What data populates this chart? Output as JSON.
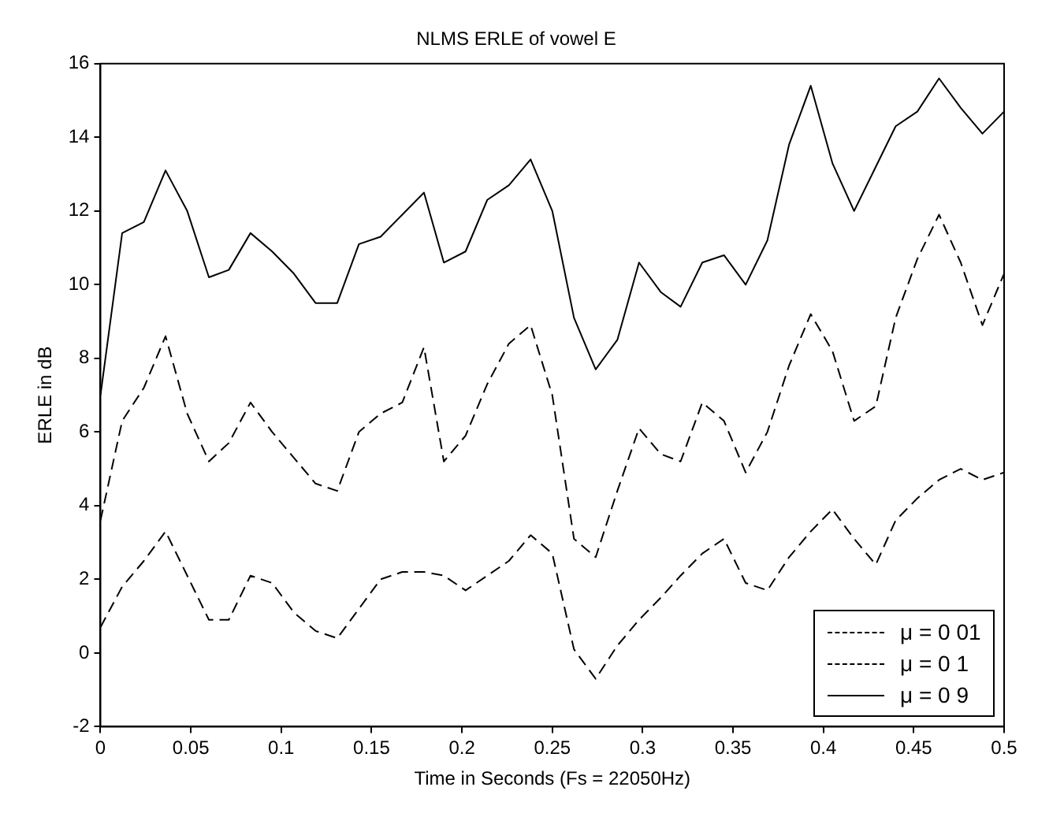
{
  "chart_data": {
    "type": "line",
    "title": "NLMS ERLE of vowel E",
    "xlabel": "Time in Seconds (Fs = 22050Hz)",
    "ylabel": "ERLE in dB",
    "x": [
      0,
      0.012,
      0.024,
      0.036,
      0.048,
      0.06,
      0.071,
      0.083,
      0.095,
      0.107,
      0.119,
      0.131,
      0.143,
      0.155,
      0.167,
      0.179,
      0.19,
      0.202,
      0.214,
      0.226,
      0.238,
      0.25,
      0.262,
      0.274,
      0.286,
      0.298,
      0.31,
      0.321,
      0.333,
      0.345,
      0.357,
      0.369,
      0.381,
      0.393,
      0.405,
      0.417,
      0.429,
      0.44,
      0.452,
      0.464,
      0.476,
      0.488,
      0.5
    ],
    "xlim": [
      0,
      0.5
    ],
    "xticks": [
      0,
      0.05,
      0.1,
      0.15,
      0.2,
      0.25,
      0.3,
      0.35,
      0.4,
      0.45,
      0.5
    ],
    "ylim": [
      -2,
      16
    ],
    "yticks": [
      -2,
      0,
      2,
      4,
      6,
      8,
      10,
      12,
      14,
      16
    ],
    "series": [
      {
        "name": "μ = 0 01",
        "color": "#000000",
        "line_style": "dashed",
        "values": [
          0.7,
          1.8,
          2.5,
          3.3,
          2.1,
          0.9,
          0.9,
          2.1,
          1.9,
          1.1,
          0.6,
          0.4,
          1.2,
          2,
          2.2,
          2.2,
          2.1,
          1.7,
          2.1,
          2.5,
          3.2,
          2.7,
          0.1,
          -0.7,
          0.2,
          0.9,
          1.5,
          2.1,
          2.7,
          3.1,
          1.9,
          1.7,
          2.6,
          3.3,
          3.9,
          3.1,
          2.4,
          3.6,
          4.2,
          4.7,
          5,
          4.7,
          4.9
        ]
      },
      {
        "name": "μ = 0 1",
        "color": "#000000",
        "line_style": "dashed",
        "values": [
          3.6,
          6.3,
          7.2,
          8.6,
          6.5,
          5.2,
          5.7,
          6.8,
          6,
          5.3,
          4.6,
          4.4,
          6,
          6.5,
          6.8,
          8.3,
          5.2,
          5.9,
          7.3,
          8.4,
          8.9,
          7,
          3.1,
          2.6,
          4.4,
          6.1,
          5.4,
          5.2,
          6.8,
          6.3,
          4.9,
          6,
          7.8,
          9.2,
          8.2,
          6.3,
          6.7,
          9.1,
          10.7,
          11.9,
          10.6,
          8.9,
          10.3
        ]
      },
      {
        "name": "μ = 0 9",
        "color": "#000000",
        "line_style": "solid",
        "values": [
          7,
          11.4,
          11.7,
          13.1,
          12,
          10.2,
          10.4,
          11.4,
          10.9,
          10.3,
          9.5,
          9.5,
          11.1,
          11.3,
          11.9,
          12.5,
          10.6,
          10.9,
          12.3,
          12.7,
          13.4,
          12,
          9.1,
          7.7,
          8.5,
          10.6,
          9.8,
          9.4,
          10.6,
          10.8,
          10,
          11.2,
          13.8,
          15.4,
          13.3,
          12,
          13.2,
          14.3,
          14.7,
          15.6,
          14.8,
          14.1,
          14.7
        ]
      }
    ],
    "legend": "bottom right",
    "grid": false,
    "marker": "none"
  }
}
